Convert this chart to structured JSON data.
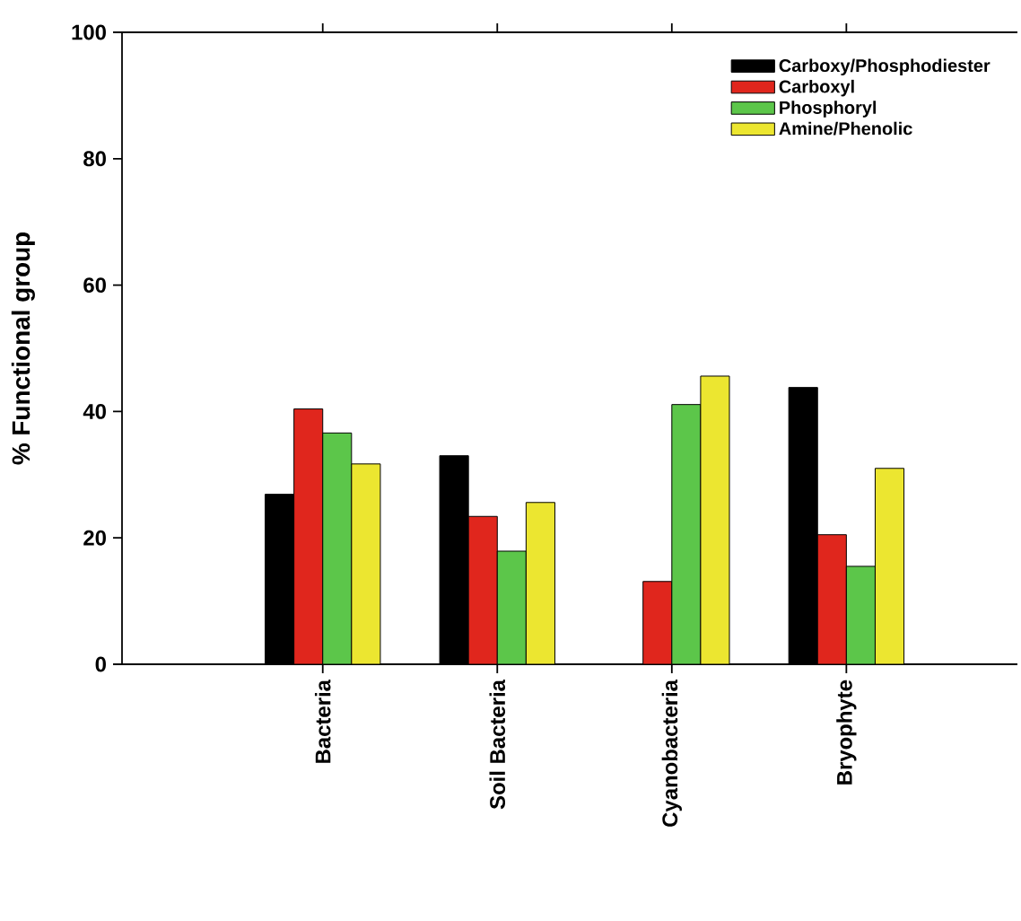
{
  "chart_data": {
    "type": "bar",
    "ylabel": "% Functional group",
    "categories": [
      "Bacteria",
      "Soil Bacteria",
      "Cyanobacteria",
      "Bryophyte"
    ],
    "series": [
      {
        "name": "Carboxy/Phosphodiester",
        "color": "#000000",
        "values": [
          26.9,
          33.0,
          null,
          43.8
        ]
      },
      {
        "name": "Carboxyl",
        "color": "#e0261d",
        "values": [
          40.4,
          23.4,
          13.1,
          20.5
        ]
      },
      {
        "name": "Phosphoryl",
        "color": "#5cc64a",
        "values": [
          36.6,
          17.9,
          41.1,
          15.5
        ]
      },
      {
        "name": "Amine/Phenolic",
        "color": "#ece630",
        "values": [
          31.7,
          25.6,
          45.6,
          31.0
        ]
      }
    ],
    "ylim": [
      0,
      100
    ],
    "yticks": [
      0,
      20,
      40,
      60,
      80,
      100
    ],
    "legend": "top right"
  }
}
